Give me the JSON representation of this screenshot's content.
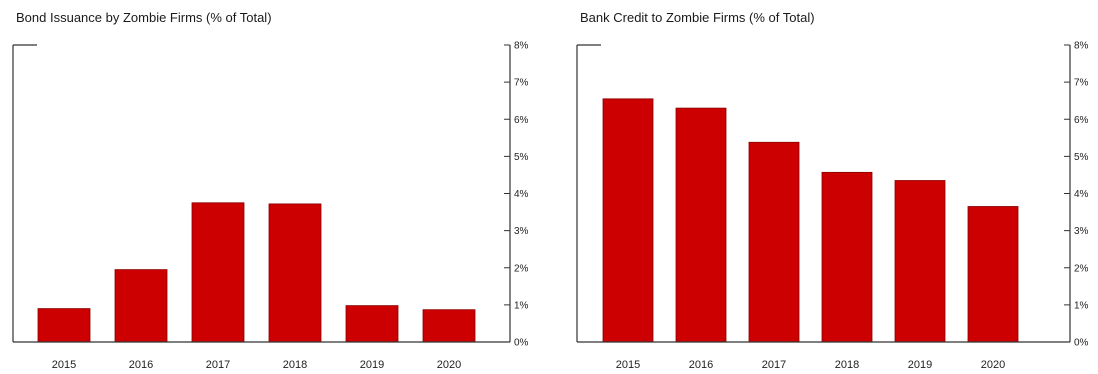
{
  "chart_data": [
    {
      "type": "bar",
      "title": "Bond Issuance by Zombie Firms (% of Total)",
      "categories": [
        "2015",
        "2016",
        "2017",
        "2018",
        "2019",
        "2020"
      ],
      "values": [
        0.9,
        1.95,
        3.75,
        3.72,
        0.98,
        0.87
      ],
      "y_ticks": [
        "0%",
        "1%",
        "2%",
        "3%",
        "4%",
        "5%",
        "6%",
        "7%",
        "8%"
      ],
      "ylim": [
        0,
        8
      ],
      "y_axis_side": "right",
      "grid": false,
      "bar_color": "#cc0000"
    },
    {
      "type": "bar",
      "title": "Bank Credit to Zombie Firms (% of Total)",
      "categories": [
        "2015",
        "2016",
        "2017",
        "2018",
        "2019",
        "2020"
      ],
      "values": [
        6.55,
        6.3,
        5.38,
        4.57,
        4.35,
        3.65
      ],
      "y_ticks": [
        "0%",
        "1%",
        "2%",
        "3%",
        "4%",
        "5%",
        "6%",
        "7%",
        "8%"
      ],
      "ylim": [
        0,
        8
      ],
      "y_axis_side": "right",
      "grid": false,
      "bar_color": "#cc0000"
    }
  ]
}
